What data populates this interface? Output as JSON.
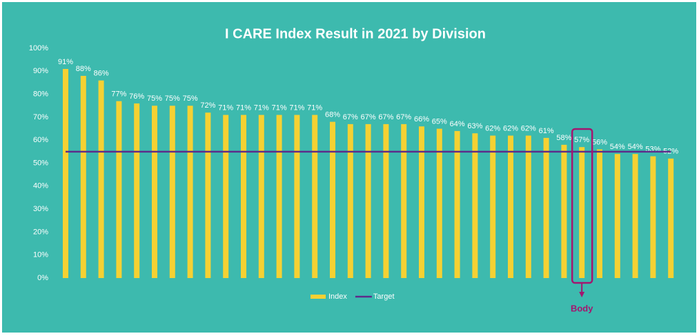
{
  "chart_data": {
    "type": "bar",
    "title": "I CARE Index Result in 2021 by Division",
    "series": [
      {
        "name": "Index",
        "color": "#f5d133",
        "values": [
          91,
          88,
          86,
          77,
          76,
          75,
          75,
          75,
          72,
          71,
          71,
          71,
          71,
          71,
          71,
          68,
          67,
          67,
          67,
          67,
          66,
          65,
          64,
          63,
          62,
          62,
          62,
          61,
          58,
          57,
          56,
          54,
          54,
          53,
          52
        ],
        "value_labels": [
          "91%",
          "88%",
          "86%",
          "77%",
          "76%",
          "75%",
          "75%",
          "75%",
          "72%",
          "71%",
          "71%",
          "71%",
          "71%",
          "71%",
          "71%",
          "68%",
          "67%",
          "67%",
          "67%",
          "67%",
          "66%",
          "65%",
          "64%",
          "63%",
          "62%",
          "62%",
          "62%",
          "61%",
          "58%",
          "57%",
          "56%",
          "54%",
          "54%",
          "53%",
          "52%"
        ]
      },
      {
        "name": "Target",
        "color": "#5e2b8a",
        "type": "line",
        "values": [
          55,
          55,
          55,
          55,
          55,
          55,
          55,
          55,
          55,
          55,
          55,
          55,
          55,
          55,
          55,
          55,
          55,
          55,
          55,
          55,
          55,
          55,
          55,
          55,
          55,
          55,
          55,
          55,
          55,
          55,
          55,
          55,
          55,
          55,
          55
        ]
      }
    ],
    "ylim": [
      0,
      100
    ],
    "yticks": [
      {
        "value": 0,
        "label": "0%"
      },
      {
        "value": 10,
        "label": "10%"
      },
      {
        "value": 20,
        "label": "20%"
      },
      {
        "value": 30,
        "label": "30%"
      },
      {
        "value": 40,
        "label": "40%"
      },
      {
        "value": 50,
        "label": "50%"
      },
      {
        "value": 60,
        "label": "60%"
      },
      {
        "value": 70,
        "label": "70%"
      },
      {
        "value": 80,
        "label": "80%"
      },
      {
        "value": 90,
        "label": "90%"
      },
      {
        "value": 100,
        "label": "100%"
      }
    ],
    "grid": false,
    "legend": "bottom",
    "annotation": "Body"
  }
}
